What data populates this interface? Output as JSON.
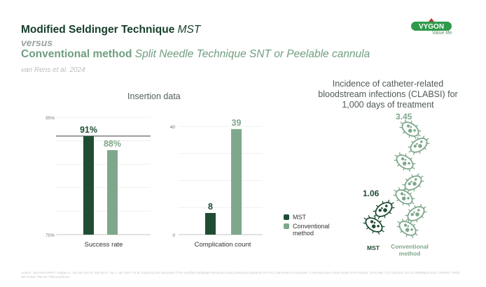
{
  "header": {
    "title_main": "Modified Seldinger Technique",
    "title_main_italic": "MST",
    "versus": "versus",
    "title_compare": "Conventional method",
    "title_compare_italic": "Split Needle Technique SNT or Peelable cannula",
    "reference": "van Rens et al. 2024"
  },
  "brand": {
    "logo_text": "VYGON",
    "tagline": "Value life",
    "logo_color": "#2e9a4b",
    "accent_dark": "#1f4d33",
    "accent_light": "#7ea88b"
  },
  "chart_data": [
    {
      "type": "bar",
      "title": "Insertion data",
      "categories": [
        "Success rate"
      ],
      "series": [
        {
          "name": "MST",
          "values": [
            91
          ],
          "labels": [
            "91%"
          ]
        },
        {
          "name": "Conventional method",
          "values": [
            88
          ],
          "labels": [
            "88%"
          ]
        }
      ],
      "ylim": [
        70,
        95
      ],
      "yticks": [
        "70%",
        "95%"
      ],
      "grid": true
    },
    {
      "type": "bar",
      "categories": [
        "Complication count"
      ],
      "series": [
        {
          "name": "MST",
          "values": [
            8
          ],
          "labels": [
            "8"
          ]
        },
        {
          "name": "Conventional method",
          "values": [
            39
          ],
          "labels": [
            "39"
          ]
        }
      ],
      "ylim": [
        0,
        40
      ],
      "yticks": [
        "0",
        "40"
      ],
      "grid": true
    }
  ],
  "legend": {
    "placement": "bottom-right",
    "items": [
      {
        "label": "MST",
        "color": "#1f4d33"
      },
      {
        "label": "Conventional method",
        "color": "#7ea88b"
      }
    ]
  },
  "incidence": {
    "title": "Incidence of catheter-related bloodstream infections (CLABSI) for 1,000 days of treatment",
    "groups": [
      {
        "label": "MST",
        "value": "1.06",
        "count": 2
      },
      {
        "label": "Conventional method",
        "value": "3.45",
        "count": 7
      }
    ],
    "icon": "bacteria-icon"
  },
  "footer": {
    "source": "Source: van Rens MFPT, Hughes K, van der Zee R, Dierckx E, Yip J, van Vliet T et al. Exploring the outcomes of the modified Seldinger technique using ultrasound guidance for PICC placement in neonates: a retrospective cohort study. Front Pediatr. 2024 May 7;12:1383463. doi:10.3389/fped.2024.1383463. PMID: 38774408; PMCID: PMC11106416."
  }
}
